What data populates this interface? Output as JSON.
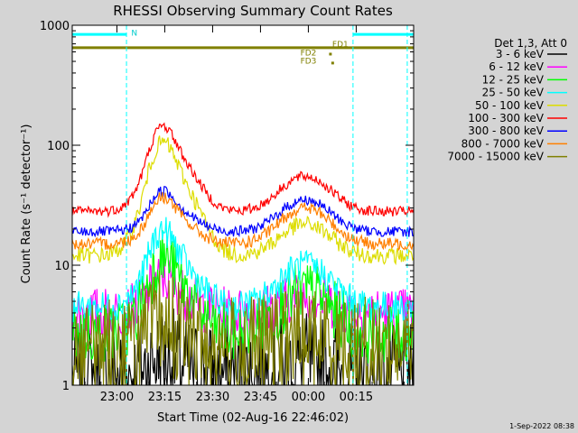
{
  "chart_data": {
    "type": "line",
    "title": "RHESSI Observing Summary Count Rates",
    "xlabel": "Start Time (02-Aug-16 22:46:02)",
    "ylabel": "Count Rate (s⁻¹ detector⁻¹)",
    "y_scale": "log",
    "ylim": [
      1,
      1000
    ],
    "xlim_minutes": [
      0,
      107
    ],
    "x_ticks": [
      {
        "m": 14,
        "label": "23:00"
      },
      {
        "m": 29,
        "label": "23:15"
      },
      {
        "m": 44,
        "label": "23:30"
      },
      {
        "m": 59,
        "label": "23:45"
      },
      {
        "m": 74,
        "label": "00:00"
      },
      {
        "m": 89,
        "label": "00:15"
      }
    ],
    "y_ticks": [
      {
        "v": 1,
        "label": "1"
      },
      {
        "v": 10,
        "label": "10"
      },
      {
        "v": 100,
        "label": "100"
      },
      {
        "v": 1000,
        "label": "1000"
      }
    ],
    "legend_title": "Det 1,3, Att 0",
    "legend_position": "right",
    "series": [
      {
        "name": "3 - 6 keV",
        "color": "#000000",
        "base": 1.2,
        "peak1": 1.8,
        "peak2": 1.5,
        "noise": 0.5
      },
      {
        "name": "6 - 12 keV",
        "color": "#ff00ff",
        "base": 4.0,
        "peak1": 8.0,
        "peak2": 5.5,
        "noise": 0.25
      },
      {
        "name": "12 - 25 keV",
        "color": "#00ff00",
        "base": 2.7,
        "peak1": 12.0,
        "peak2": 6.0,
        "noise": 0.3
      },
      {
        "name": "25 - 50 keV",
        "color": "#00ffff",
        "base": 4.5,
        "peak1": 20.0,
        "peak2": 10.0,
        "noise": 0.15
      },
      {
        "name": "50 - 100 keV",
        "color": "#dddd00",
        "base": 12.0,
        "peak1": 110.0,
        "peak2": 22.0,
        "noise": 0.08
      },
      {
        "name": "100 - 300 keV",
        "color": "#ff0000",
        "base": 28.0,
        "peak1": 150.0,
        "peak2": 55.0,
        "noise": 0.05
      },
      {
        "name": "300 - 800 keV",
        "color": "#0000ff",
        "base": 19.0,
        "peak1": 43.0,
        "peak2": 35.0,
        "noise": 0.05
      },
      {
        "name": "800 - 7000 keV",
        "color": "#ff8000",
        "base": 15.0,
        "peak1": 38.0,
        "peak2": 30.0,
        "noise": 0.06
      },
      {
        "name": "7000 - 15000 keV",
        "color": "#808000",
        "base": 2.0,
        "peak1": 3.5,
        "peak2": 2.5,
        "noise": 0.5
      }
    ],
    "event_lines_minutes": [
      0,
      17,
      88,
      105
    ],
    "annotations": [
      {
        "text": "N",
        "m": 18.5,
        "v": 820
      },
      {
        "text": "FD1",
        "m": 81.5,
        "v": 660
      },
      {
        "text": "FD2",
        "m": 71.5,
        "v": 560
      },
      {
        "text": "FD3",
        "m": 71.5,
        "v": 480
      }
    ],
    "background_level": 650,
    "timestamp": "1-Sep-2022 08:38"
  }
}
